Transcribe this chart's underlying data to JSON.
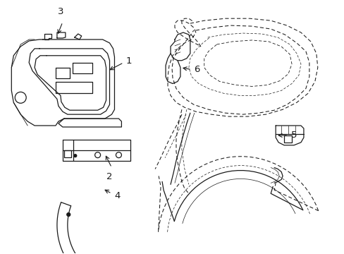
{
  "background_color": "#ffffff",
  "line_color": "#1a1a1a",
  "lw": 0.9,
  "dlw": 0.75,
  "label_fontsize": 9.5
}
